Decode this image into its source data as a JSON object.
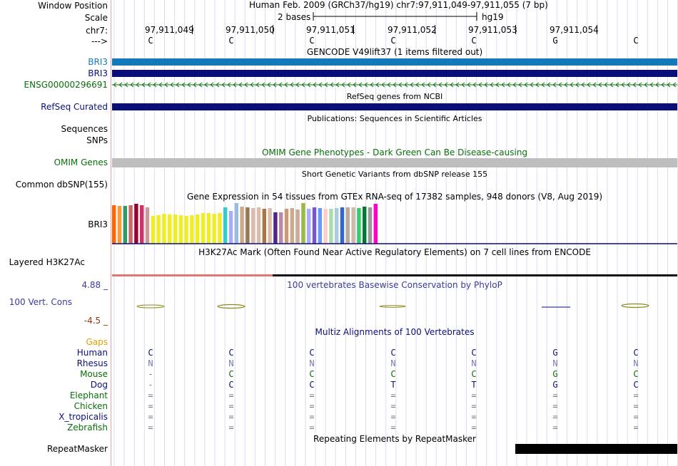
{
  "colors": {
    "gencode_blue": "#1479b9",
    "navy": "#0a0f78",
    "green": "#0a6e0a",
    "omim_gray": "#bebebe",
    "conservation_label": "#3b3b9a",
    "cons_wiggle": "#8c8c1e",
    "neg_label": "#8a3a0a",
    "gaps_label": "#e0a000",
    "h3k27ac_red": "#e0786e",
    "rhesus_gray": "#7a7ab0"
  },
  "header": {
    "window_position_label": "Window Position",
    "window_position_value": "Human Feb. 2009 (GRCh37/hg19)   chr7:97,911,049-97,911,055 (7 bp)",
    "scale_label": "Scale",
    "scale_value": "2 bases",
    "scale_assembly": "hg19",
    "chrom_label": "chr7:",
    "strand_label": "--->",
    "positions": [
      "97,911,049",
      "97,911,050",
      "97,911,051",
      "97,911,052",
      "97,911,053",
      "97,911,054"
    ],
    "bases": [
      "C",
      "C",
      "C",
      "C",
      "C",
      "G",
      "C"
    ]
  },
  "tracks": {
    "gencode_title": "GENCODE V49lift37 (1 items filtered out)",
    "gencode_rows": [
      "BRI3",
      "BRI3",
      "ENSG00000296691"
    ],
    "refseq_title": "RefSeq genes from NCBI",
    "refseq_label": "RefSeq Curated",
    "publications_title": "Publications: Sequences in Scientific Articles",
    "sequences_label": "Sequences",
    "snps_label": "SNPs",
    "omim_title": "OMIM Gene Phenotypes - Dark Green Can Be Disease-causing",
    "omim_label": "OMIM Genes",
    "dbsnp_title": "Short Genetic Variants from dbSNP release 155",
    "dbsnp_label": "Common dbSNP(155)",
    "gtex_title": "Gene Expression in 54 tissues from GTEx RNA-seq of 17382 samples, 948 donors (V8, Aug 2019)",
    "gtex_label": "BRI3",
    "h3k27ac_title": "H3K27Ac Mark (Often Found Near Active Regulatory Elements) on 7 cell lines from ENCODE",
    "h3k27ac_label": "Layered H3K27Ac",
    "cons_max": "4.88 _",
    "cons_title": "100 vertebrates Basewise Conservation by PhyloP",
    "cons_label": "100 Vert. Cons",
    "cons_min": "-4.5 _",
    "multiz_title": "Multiz Alignments of 100 Vertebrates",
    "repeat_title": "Repeating Elements by RepeatMasker",
    "repeat_label": "RepeatMasker"
  },
  "gtex_bars": [
    {
      "color": "#ff6600",
      "level": 0.95
    },
    {
      "color": "#ff9933",
      "level": 0.93
    },
    {
      "color": "#339966",
      "level": 0.93
    },
    {
      "color": "#cc6666",
      "level": 0.95
    },
    {
      "color": "#990033",
      "level": 0.98
    },
    {
      "color": "#cc3366",
      "level": 0.95
    },
    {
      "color": "#cc9999",
      "level": 0.9
    },
    {
      "color": "#eeee22",
      "level": 0.68
    },
    {
      "color": "#eeee22",
      "level": 0.7
    },
    {
      "color": "#eeee22",
      "level": 0.74
    },
    {
      "color": "#eeee22",
      "level": 0.72
    },
    {
      "color": "#eeee22",
      "level": 0.72
    },
    {
      "color": "#eeee22",
      "level": 0.7
    },
    {
      "color": "#eeee22",
      "level": 0.68
    },
    {
      "color": "#eeee22",
      "level": 0.7
    },
    {
      "color": "#eeee22",
      "level": 0.72
    },
    {
      "color": "#eeee22",
      "level": 0.75
    },
    {
      "color": "#eeee22",
      "level": 0.75
    },
    {
      "color": "#eeee22",
      "level": 0.73
    },
    {
      "color": "#eeee22",
      "level": 0.75
    },
    {
      "color": "#33cccc",
      "level": 0.9
    },
    {
      "color": "#aaaaff",
      "level": 0.8
    },
    {
      "color": "#99bbdd",
      "level": 1.0
    },
    {
      "color": "#ccaa88",
      "level": 0.92
    },
    {
      "color": "#997755",
      "level": 0.9
    },
    {
      "color": "#ddbbaa",
      "level": 0.88
    },
    {
      "color": "#ddbbaa",
      "level": 0.9
    },
    {
      "color": "#aa7744",
      "level": 0.86
    },
    {
      "color": "#ddbbaa",
      "level": 0.88
    },
    {
      "color": "#552288",
      "level": 0.78
    },
    {
      "color": "#bb88aa",
      "level": 0.78
    },
    {
      "color": "#cc9977",
      "level": 0.86
    },
    {
      "color": "#ccaa88",
      "level": 0.88
    },
    {
      "color": "#ccaa99",
      "level": 0.85
    },
    {
      "color": "#99bb44",
      "level": 1.0
    },
    {
      "color": "#aaaaff",
      "level": 0.86
    },
    {
      "color": "#7755cc",
      "level": 0.9
    },
    {
      "color": "#6699ff",
      "level": 0.88
    },
    {
      "color": "#ffcccc",
      "level": 0.86
    },
    {
      "color": "#aaddaa",
      "level": 0.86
    },
    {
      "color": "#aaccdd",
      "level": 0.88
    },
    {
      "color": "#3366cc",
      "level": 0.9
    },
    {
      "color": "#bbaa99",
      "level": 0.9
    },
    {
      "color": "#ccbbaa",
      "level": 0.9
    },
    {
      "color": "#33cc66",
      "level": 0.88
    },
    {
      "color": "#007733",
      "level": 0.92
    },
    {
      "color": "#999999",
      "level": 0.9
    },
    {
      "color": "#ff00cc",
      "level": 0.98
    }
  ],
  "multiz": {
    "species": [
      {
        "name": "Gaps",
        "color": "#e0a000",
        "bases": []
      },
      {
        "name": "Human",
        "color": "#0a0f78",
        "bases": [
          "C",
          "C",
          "C",
          "C",
          "C",
          "G",
          "C"
        ]
      },
      {
        "name": "Rhesus",
        "color": "#0a0f78",
        "bases": [
          "N",
          "N",
          "N",
          "N",
          "N",
          "N",
          "N"
        ]
      },
      {
        "name": "Mouse",
        "color": "#0a6e0a",
        "bases": [
          "-",
          "C",
          "C",
          "C",
          "C",
          "G",
          "C"
        ]
      },
      {
        "name": "Dog",
        "color": "#0a0f78",
        "bases": [
          "-",
          "C",
          "C",
          "T",
          "T",
          "G",
          "C"
        ]
      },
      {
        "name": "Elephant",
        "color": "#0a6e0a",
        "bases": [
          "=",
          "=",
          "=",
          "=",
          "=",
          "=",
          "="
        ]
      },
      {
        "name": "Chicken",
        "color": "#0a6e0a",
        "bases": [
          "=",
          "=",
          "=",
          "=",
          "=",
          "=",
          "="
        ]
      },
      {
        "name": "X_tropicalis",
        "color": "#0a0f78",
        "bases": [
          "=",
          "=",
          "=",
          "=",
          "=",
          "=",
          "="
        ]
      },
      {
        "name": "Zebrafish",
        "color": "#0a6e0a",
        "bases": [
          "=",
          "=",
          "=",
          "=",
          "=",
          "=",
          "="
        ]
      }
    ]
  }
}
